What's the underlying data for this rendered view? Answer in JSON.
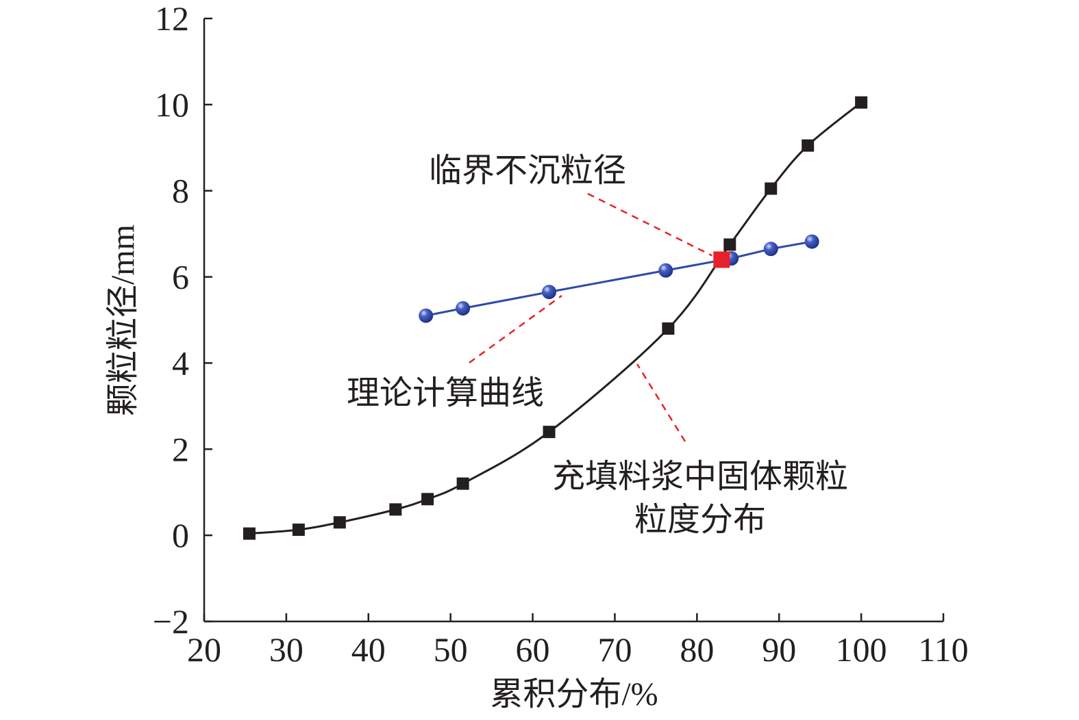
{
  "chart_data": {
    "type": "line",
    "xlabel": "累积分布/%",
    "ylabel": "颗粒粒径/mm",
    "xlim": [
      20,
      110
    ],
    "ylim": [
      -2,
      12
    ],
    "x_ticks": [
      "20",
      "30",
      "40",
      "50",
      "60",
      "70",
      "80",
      "90",
      "100",
      "110"
    ],
    "y_ticks": [
      "−2",
      "0",
      "2",
      "4",
      "6",
      "8",
      "10",
      "12"
    ],
    "grid": false,
    "series": [
      {
        "name": "充填料浆中固体颗粒粒度分布",
        "color": "#231f20",
        "marker": "square",
        "points": [
          [
            25.5,
            0.04
          ],
          [
            31.5,
            0.13
          ],
          [
            36.5,
            0.3
          ],
          [
            43.3,
            0.6
          ],
          [
            47.2,
            0.84
          ],
          [
            51.5,
            1.2
          ],
          [
            62.0,
            2.4
          ],
          [
            76.5,
            4.8
          ],
          [
            84.0,
            6.75
          ],
          [
            89.0,
            8.05
          ],
          [
            93.5,
            9.05
          ],
          [
            100.0,
            10.05
          ]
        ]
      },
      {
        "name": "理论计算曲线",
        "color": "#2e4aa8",
        "marker": "circle",
        "points": [
          [
            47.0,
            5.1
          ],
          [
            51.5,
            5.27
          ],
          [
            62.0,
            5.65
          ],
          [
            76.2,
            6.15
          ],
          [
            84.2,
            6.43
          ],
          [
            89.0,
            6.65
          ],
          [
            94.0,
            6.82
          ]
        ]
      }
    ],
    "intersection": {
      "name": "临界不沉粒径",
      "x": 83.0,
      "y": 6.4,
      "color": "#e8202a"
    },
    "annotations": [
      {
        "key": "critical",
        "text": "临界不沉粒径"
      },
      {
        "key": "theory",
        "text": "理论计算曲线"
      },
      {
        "key": "dist_line1",
        "text": "充填料浆中固体颗粒"
      },
      {
        "key": "dist_line2",
        "text": "粒度分布"
      }
    ]
  }
}
